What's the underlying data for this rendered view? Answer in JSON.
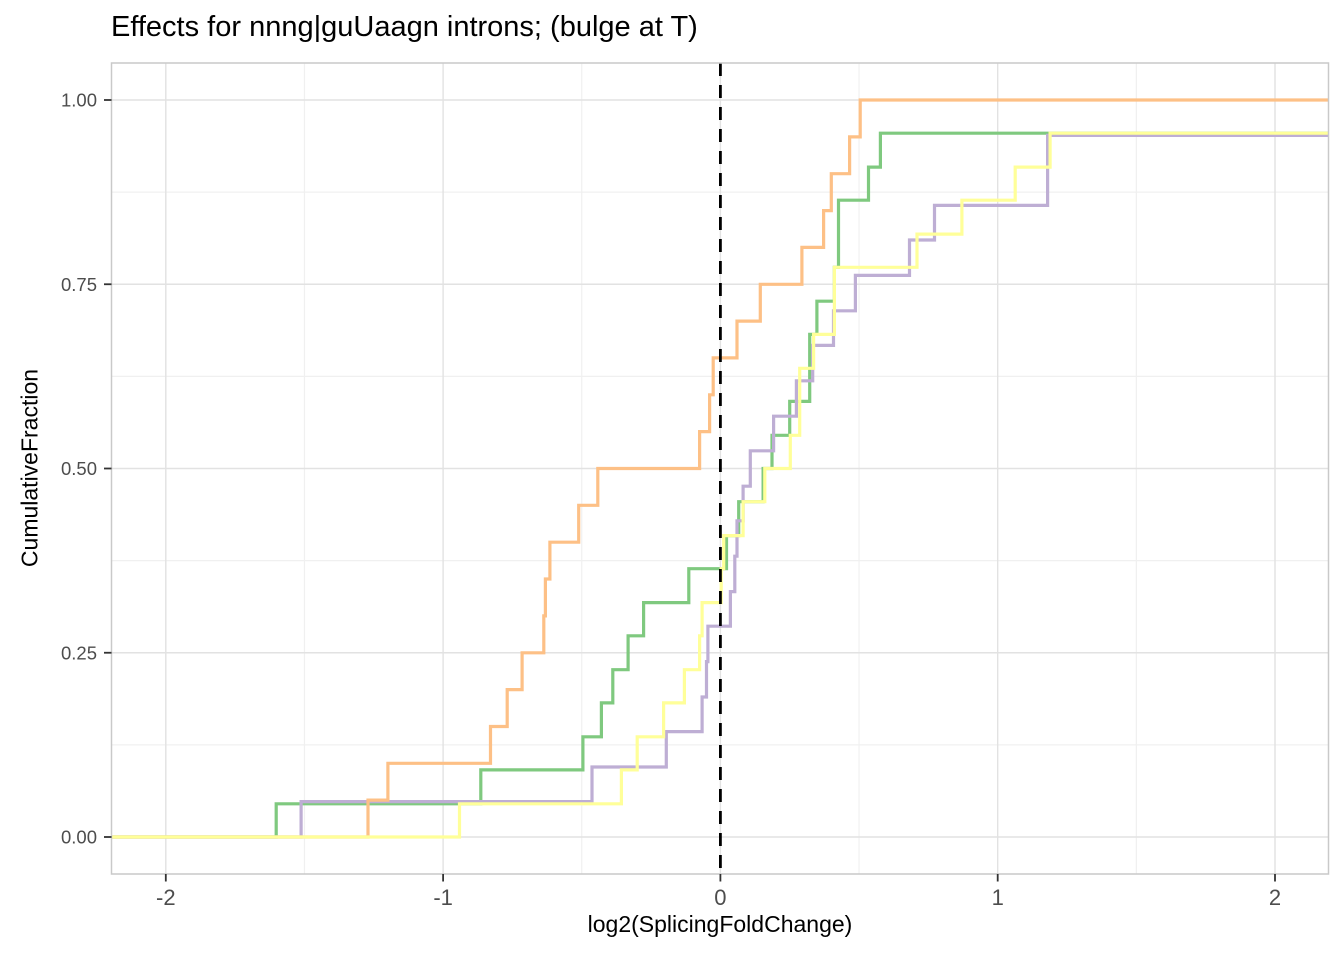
{
  "chart_data": {
    "type": "line",
    "subtype": "ecdf_step",
    "title": "Effects for nnng|guUaagn introns; (bulge at T)",
    "xlabel": "log2(SplicingFoldChange)",
    "ylabel": "CumulativeFraction",
    "xlim": [
      -2.2,
      2.19
    ],
    "ylim": [
      -0.05,
      1.05
    ],
    "grid": true,
    "legend": "none",
    "x_ticks": {
      "values": [
        -2,
        -1,
        0,
        1,
        2
      ],
      "labels": [
        "-2",
        "-1",
        "0",
        "1",
        "2"
      ]
    },
    "x_minor_ticks": [
      -1.5,
      -0.5,
      0.5,
      1.5
    ],
    "y_ticks": {
      "values": [
        0,
        0.25,
        0.5,
        0.75,
        1
      ],
      "labels": [
        "0.00",
        "0.25",
        "0.50",
        "0.75",
        "1.00"
      ]
    },
    "y_minor_ticks": [
      0.125,
      0.375,
      0.625,
      0.875
    ],
    "reference_line": {
      "x": 0,
      "style": "dashed",
      "color": "#000000"
    },
    "series": [
      {
        "name": "green",
        "color": "#7FC97F",
        "start_fraction": 0,
        "jumps": [
          [
            -1.602,
            0.045
          ],
          [
            -0.864,
            0.091
          ],
          [
            -0.496,
            0.136
          ],
          [
            -0.429,
            0.182
          ],
          [
            -0.388,
            0.227
          ],
          [
            -0.333,
            0.273
          ],
          [
            -0.277,
            0.318
          ],
          [
            -0.114,
            0.364
          ],
          [
            0.022,
            0.409
          ],
          [
            0.066,
            0.455
          ],
          [
            0.154,
            0.5
          ],
          [
            0.186,
            0.545
          ],
          [
            0.25,
            0.591
          ],
          [
            0.322,
            0.682
          ],
          [
            0.348,
            0.727
          ],
          [
            0.411,
            0.773
          ],
          [
            0.426,
            0.864
          ],
          [
            0.534,
            0.909
          ],
          [
            0.577,
            0.955
          ]
        ]
      },
      {
        "name": "purple",
        "color": "#BEAED4",
        "start_fraction": 0,
        "jumps": [
          [
            -1.512,
            0.048
          ],
          [
            -0.463,
            0.095
          ],
          [
            -0.195,
            0.143
          ],
          [
            -0.066,
            0.19
          ],
          [
            -0.05,
            0.238
          ],
          [
            -0.045,
            0.286
          ],
          [
            0.036,
            0.333
          ],
          [
            0.052,
            0.381
          ],
          [
            0.06,
            0.429
          ],
          [
            0.082,
            0.476
          ],
          [
            0.108,
            0.524
          ],
          [
            0.192,
            0.571
          ],
          [
            0.274,
            0.619
          ],
          [
            0.333,
            0.667
          ],
          [
            0.408,
            0.714
          ],
          [
            0.487,
            0.762
          ],
          [
            0.682,
            0.81
          ],
          [
            0.772,
            0.857
          ],
          [
            1.18,
            0.952
          ]
        ]
      },
      {
        "name": "orange",
        "color": "#FDC086",
        "start_fraction": 0,
        "jumps": [
          [
            -1.271,
            0.05
          ],
          [
            -1.199,
            0.1
          ],
          [
            -0.829,
            0.15
          ],
          [
            -0.769,
            0.2
          ],
          [
            -0.715,
            0.25
          ],
          [
            -0.637,
            0.3
          ],
          [
            -0.631,
            0.35
          ],
          [
            -0.615,
            0.4
          ],
          [
            -0.511,
            0.45
          ],
          [
            -0.442,
            0.5
          ],
          [
            -0.075,
            0.55
          ],
          [
            -0.039,
            0.6
          ],
          [
            -0.026,
            0.65
          ],
          [
            0.06,
            0.7
          ],
          [
            0.144,
            0.75
          ],
          [
            0.294,
            0.8
          ],
          [
            0.372,
            0.85
          ],
          [
            0.4,
            0.9
          ],
          [
            0.466,
            0.95
          ],
          [
            0.504,
            1.0
          ]
        ]
      },
      {
        "name": "yellow",
        "color": "#FFFF99",
        "start_fraction": 0,
        "jumps": [
          [
            -0.941,
            0.045
          ],
          [
            -0.357,
            0.091
          ],
          [
            -0.3,
            0.136
          ],
          [
            -0.205,
            0.182
          ],
          [
            -0.13,
            0.227
          ],
          [
            -0.075,
            0.273
          ],
          [
            -0.066,
            0.318
          ],
          [
            0.003,
            0.364
          ],
          [
            0.012,
            0.409
          ],
          [
            0.082,
            0.455
          ],
          [
            0.16,
            0.5
          ],
          [
            0.252,
            0.545
          ],
          [
            0.286,
            0.636
          ],
          [
            0.336,
            0.682
          ],
          [
            0.411,
            0.773
          ],
          [
            0.709,
            0.818
          ],
          [
            0.871,
            0.864
          ],
          [
            1.063,
            0.909
          ],
          [
            1.189,
            0.955
          ]
        ]
      }
    ]
  },
  "theme": {
    "background": "#ffffff",
    "panel_background": "#ffffff",
    "panel_border": "#c9c9c9",
    "grid_major": "#e2e2e2",
    "grid_minor": "#f0f0f0",
    "tick_color": "#333333",
    "tick_label_color": "#4d4d4d",
    "title_color": "#000000"
  }
}
